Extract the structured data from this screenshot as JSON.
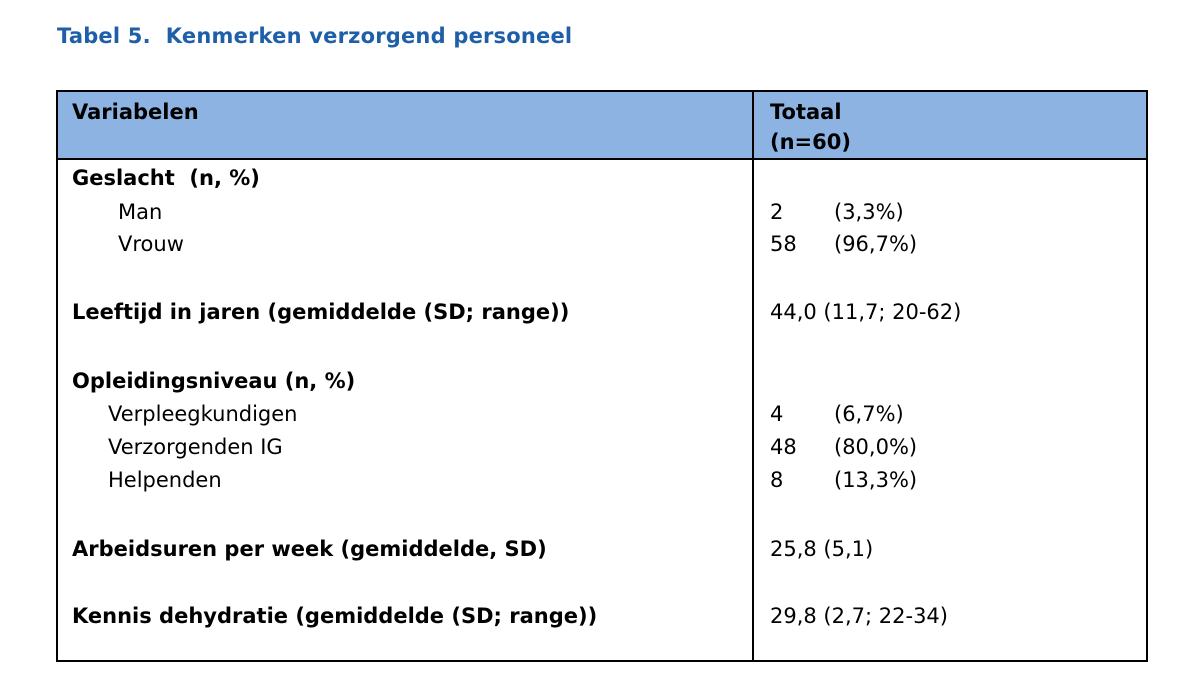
{
  "title": "Tabel 5.  Kenmerken verzorgend personeel",
  "header": {
    "variabelen": "Variabelen",
    "totaal_line1": "Totaal",
    "totaal_line2": "(n=60)"
  },
  "geslacht": {
    "label": "Geslacht  (n, %)",
    "man": {
      "label": "Man",
      "n": "2",
      "pct": "(3,3%)"
    },
    "vrouw": {
      "label": "Vrouw",
      "n": "58",
      "pct": "(96,7%)"
    }
  },
  "leeftijd": {
    "label": "Leeftijd in jaren (gemiddelde (SD; range))",
    "value": "44,0 (11,7; 20-62)"
  },
  "opleiding": {
    "label": "Opleidingsniveau (n, %)",
    "verpleeg": {
      "label": "Verpleegkundigen",
      "n": "4",
      "pct": "(6,7%)"
    },
    "verzorg": {
      "label": "Verzorgenden IG",
      "n": "48",
      "pct": "(80,0%)"
    },
    "helpend": {
      "label": "Helpenden",
      "n": "8",
      "pct": "(13,3%)"
    }
  },
  "arbeidsuren": {
    "label": "Arbeidsuren per week (gemiddelde, SD)",
    "value": "25,8 (5,1)"
  },
  "kennis": {
    "label": "Kennis dehydratie (gemiddelde (SD; range))",
    "value": "29,8 (2,7; 22-34)"
  }
}
